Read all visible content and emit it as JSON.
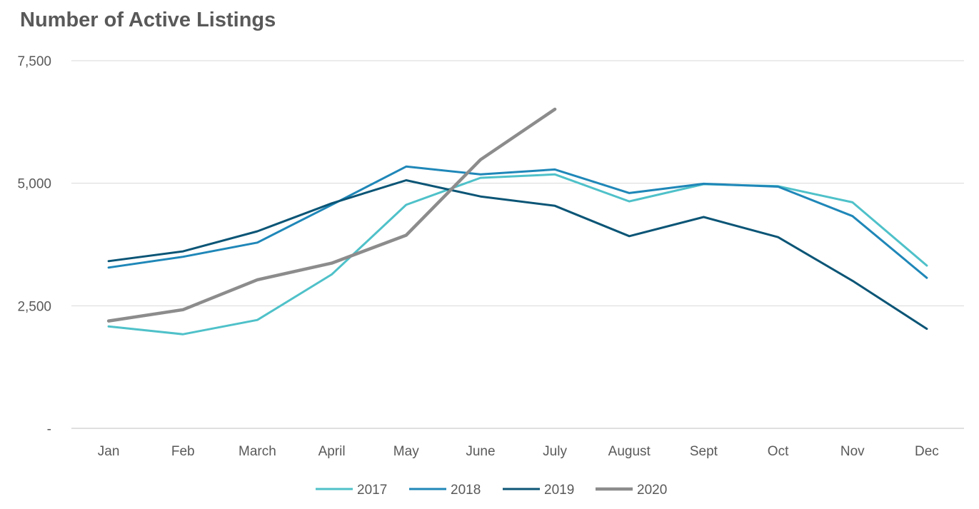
{
  "chart_data": {
    "type": "line",
    "title": "Number of Active Listings",
    "xlabel": "",
    "ylabel": "",
    "categories": [
      "Jan",
      "Feb",
      "March",
      "April",
      "May",
      "June",
      "July",
      "August",
      "Sept",
      "Oct",
      "Nov",
      "Dec"
    ],
    "ylim": [
      0,
      7500
    ],
    "yticks": [
      0,
      2500,
      5000,
      7500
    ],
    "ytick_labels": [
      "-",
      "2,500",
      "5,000",
      "7,500"
    ],
    "grid": true,
    "legend_position": "bottom",
    "series": [
      {
        "name": "2017",
        "color": "#4FC1C9",
        "width": 3,
        "values": [
          2080,
          1920,
          2210,
          3140,
          4560,
          5110,
          5180,
          4630,
          4980,
          4940,
          4610,
          3320
        ]
      },
      {
        "name": "2018",
        "color": "#1F87B8",
        "width": 3,
        "values": [
          3280,
          3500,
          3790,
          4560,
          5340,
          5180,
          5280,
          4800,
          4990,
          4930,
          4330,
          3070
        ]
      },
      {
        "name": "2019",
        "color": "#0B5576",
        "width": 3,
        "values": [
          3410,
          3610,
          4020,
          4590,
          5060,
          4730,
          4540,
          3920,
          4310,
          3900,
          3010,
          2030
        ]
      },
      {
        "name": "2020",
        "color": "#8C8C8C",
        "width": 4.5,
        "values": [
          2190,
          2420,
          3030,
          3370,
          3940,
          5480,
          6510,
          null,
          null,
          null,
          null,
          null
        ]
      }
    ]
  }
}
